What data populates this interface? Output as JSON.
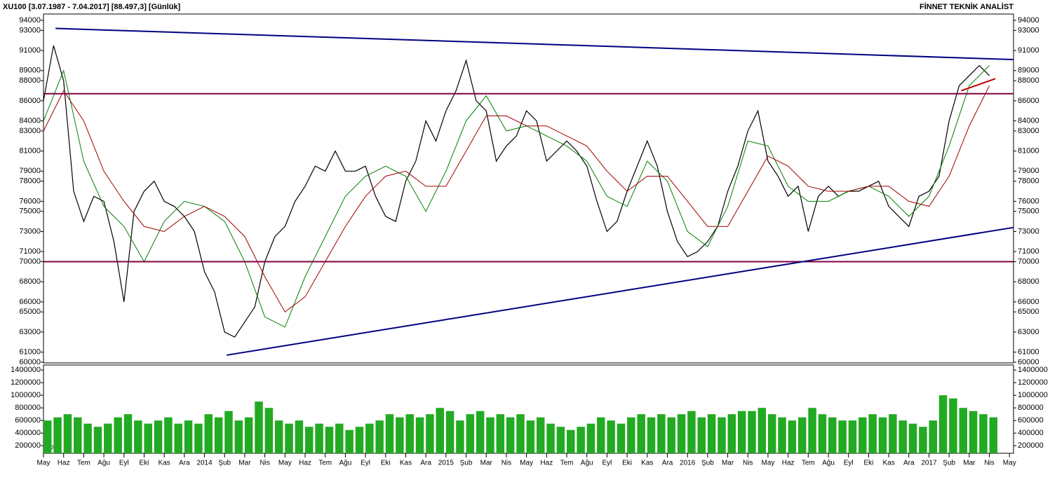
{
  "chart_data": [
    {
      "type": "line",
      "title": "XU100  [3.07.1987 - 7.04.2017]  [88.497,3]  [Günlük]",
      "subtitle": "FİNNET TEKNİK ANALİST",
      "xlim": [
        0,
        48.2
      ],
      "ylim": [
        59930,
        94630
      ],
      "yticks": [
        60000,
        61000,
        63000,
        65000,
        66000,
        68000,
        70000,
        71000,
        73000,
        75000,
        76000,
        78000,
        79000,
        81000,
        83000,
        84000,
        86000,
        88000,
        89000,
        91000,
        93000,
        94000
      ],
      "x": [
        0,
        0.5,
        1,
        1.5,
        2,
        2.5,
        3,
        3.5,
        4,
        4.5,
        5,
        5.5,
        6,
        6.5,
        7,
        7.5,
        8,
        8.5,
        9,
        9.5,
        10,
        10.5,
        11,
        11.5,
        12,
        12.5,
        13,
        13.5,
        14,
        14.5,
        15,
        15.5,
        16,
        16.5,
        17,
        17.5,
        18,
        18.5,
        19,
        19.5,
        20,
        20.5,
        21,
        21.5,
        22,
        22.5,
        23,
        23.5,
        24,
        24.5,
        25,
        25.5,
        26,
        26.5,
        27,
        27.5,
        28,
        28.5,
        29,
        29.5,
        30,
        30.5,
        31,
        31.5,
        32,
        32.5,
        33,
        33.5,
        34,
        34.5,
        35,
        35.5,
        36,
        36.5,
        37,
        37.5,
        38,
        38.5,
        39,
        39.5,
        40,
        40.5,
        41,
        41.5,
        42,
        42.5,
        43,
        43.5,
        44,
        44.5,
        45,
        45.5,
        46,
        46.5,
        47
      ],
      "series": [
        {
          "color": "#000000",
          "values": [
            86000,
            91500,
            88000,
            77000,
            74000,
            76500,
            76000,
            72000,
            66000,
            75000,
            77000,
            78000,
            76000,
            75500,
            74500,
            73000,
            69000,
            67000,
            63000,
            62500,
            64000,
            65500,
            70000,
            72500,
            73500,
            76000,
            77500,
            79500,
            79000,
            81000,
            79000,
            79000,
            79500,
            76500,
            74500,
            74000,
            78000,
            80000,
            84000,
            82000,
            85000,
            87000,
            90000,
            86000,
            85000,
            80000,
            81500,
            82500,
            85000,
            84000,
            80000,
            81000,
            82000,
            81000,
            79500,
            76000,
            73000,
            74000,
            77000,
            79500,
            82000,
            79500,
            75000,
            72000,
            70500,
            71000,
            72000,
            73500,
            77000,
            79500,
            83000,
            85000,
            80000,
            78500,
            76500,
            77500,
            73000,
            76500,
            77500,
            76500,
            77000,
            77000,
            77500,
            78000,
            75500,
            74500,
            73500,
            76500,
            77000,
            78500,
            84000,
            87500,
            88500,
            89500,
            88500
          ]
        },
        {
          "color": "#008000",
          "x": [
            0,
            1,
            2,
            3,
            4,
            5,
            6,
            7,
            8,
            9,
            10,
            11,
            12,
            13,
            14,
            15,
            16,
            17,
            18,
            19,
            20,
            21,
            22,
            23,
            24,
            25,
            26,
            27,
            28,
            29,
            30,
            31,
            32,
            33,
            34,
            35,
            36,
            37,
            38,
            39,
            40,
            41,
            42,
            43,
            44,
            45,
            46,
            47
          ],
          "values": [
            84000,
            89000,
            80000,
            75500,
            73500,
            70000,
            74000,
            76000,
            75500,
            74000,
            70000,
            64500,
            63500,
            68500,
            72500,
            76500,
            78500,
            79500,
            78500,
            75000,
            79000,
            84000,
            86500,
            83000,
            83500,
            82500,
            81500,
            80000,
            76500,
            75500,
            80000,
            78000,
            73000,
            71500,
            75500,
            82000,
            81500,
            77500,
            76000,
            76000,
            77000,
            77500,
            76500,
            74500,
            76500,
            81500,
            87500,
            89500
          ]
        },
        {
          "color": "#a00000",
          "x": [
            0,
            1,
            2,
            3,
            4,
            5,
            6,
            7,
            8,
            9,
            10,
            11,
            12,
            13,
            14,
            15,
            16,
            17,
            18,
            19,
            20,
            21,
            22,
            23,
            24,
            25,
            26,
            27,
            28,
            29,
            30,
            31,
            32,
            33,
            34,
            35,
            36,
            37,
            38,
            39,
            40,
            41,
            42,
            43,
            44,
            45,
            46,
            47
          ],
          "values": [
            83000,
            87000,
            84000,
            79000,
            76000,
            73500,
            73000,
            74500,
            75500,
            74500,
            72500,
            68500,
            65000,
            66500,
            70000,
            73500,
            76500,
            78500,
            79000,
            77500,
            77500,
            81000,
            84500,
            84500,
            83500,
            83500,
            82500,
            81500,
            79000,
            77000,
            78500,
            78500,
            76000,
            73500,
            73500,
            77000,
            80500,
            79500,
            77500,
            77000,
            77000,
            77500,
            77500,
            76000,
            75500,
            78500,
            83500,
            87500
          ]
        }
      ],
      "trendlines": [
        {
          "color": "#000080",
          "points": [
            [
              0.6,
              93200
            ],
            [
              48.2,
              90100
            ]
          ]
        },
        {
          "color": "#800040",
          "points": [
            [
              0,
              86700
            ],
            [
              48.2,
              86700
            ]
          ]
        },
        {
          "color": "#800040",
          "points": [
            [
              0,
              70000
            ],
            [
              48.2,
              70000
            ]
          ]
        },
        {
          "color": "#000080",
          "points": [
            [
              9.1,
              60700
            ],
            [
              48.2,
              73400
            ]
          ]
        },
        {
          "color": "#c00000",
          "points": [
            [
              45.6,
              87000
            ],
            [
              47.3,
              88200
            ]
          ]
        }
      ]
    },
    {
      "type": "bar",
      "unit_label": "10^3",
      "color": "#22aa22",
      "xlim": [
        0,
        48.2
      ],
      "ylim": [
        80000,
        1480000
      ],
      "yticks": [
        200000,
        400000,
        600000,
        800000,
        1000000,
        1200000,
        1400000
      ],
      "xticks": [
        {
          "value": 0,
          "label": "May"
        },
        {
          "value": 1,
          "label": "Haz"
        },
        {
          "value": 2,
          "label": "Tem"
        },
        {
          "value": 3,
          "label": "Ağu"
        },
        {
          "value": 4,
          "label": "Eyl"
        },
        {
          "value": 5,
          "label": "Eki"
        },
        {
          "value": 6,
          "label": "Kas"
        },
        {
          "value": 7,
          "label": "Ara"
        },
        {
          "value": 8,
          "label": "2014"
        },
        {
          "value": 9,
          "label": "Şub"
        },
        {
          "value": 10,
          "label": "Mar"
        },
        {
          "value": 11,
          "label": "Nis"
        },
        {
          "value": 12,
          "label": "May"
        },
        {
          "value": 13,
          "label": "Haz"
        },
        {
          "value": 14,
          "label": "Tem"
        },
        {
          "value": 15,
          "label": "Ağu"
        },
        {
          "value": 16,
          "label": "Eyl"
        },
        {
          "value": 17,
          "label": "Eki"
        },
        {
          "value": 18,
          "label": "Kas"
        },
        {
          "value": 19,
          "label": "Ara"
        },
        {
          "value": 20,
          "label": "2015"
        },
        {
          "value": 21,
          "label": "Şub"
        },
        {
          "value": 22,
          "label": "Mar"
        },
        {
          "value": 23,
          "label": "Nis"
        },
        {
          "value": 24,
          "label": "May"
        },
        {
          "value": 25,
          "label": "Haz"
        },
        {
          "value": 26,
          "label": "Tem"
        },
        {
          "value": 27,
          "label": "Ağu"
        },
        {
          "value": 28,
          "label": "Eyl"
        },
        {
          "value": 29,
          "label": "Eki"
        },
        {
          "value": 30,
          "label": "Kas"
        },
        {
          "value": 31,
          "label": "Ara"
        },
        {
          "value": 32,
          "label": "2016"
        },
        {
          "value": 33,
          "label": "Şub"
        },
        {
          "value": 34,
          "label": "Mar"
        },
        {
          "value": 35,
          "label": "Nis"
        },
        {
          "value": 36,
          "label": "May"
        },
        {
          "value": 37,
          "label": "Haz"
        },
        {
          "value": 38,
          "label": "Tem"
        },
        {
          "value": 39,
          "label": "Ağu"
        },
        {
          "value": 40,
          "label": "Eyl"
        },
        {
          "value": 41,
          "label": "Eki"
        },
        {
          "value": 42,
          "label": "Kas"
        },
        {
          "value": 43,
          "label": "Ara"
        },
        {
          "value": 44,
          "label": "2017"
        },
        {
          "value": 45,
          "label": "Şub"
        },
        {
          "value": 46,
          "label": "Mar"
        },
        {
          "value": 47,
          "label": "Nis"
        },
        {
          "value": 48,
          "label": "May"
        }
      ],
      "x": [
        0,
        0.5,
        1,
        1.5,
        2,
        2.5,
        3,
        3.5,
        4,
        4.5,
        5,
        5.5,
        6,
        6.5,
        7,
        7.5,
        8,
        8.5,
        9,
        9.5,
        10,
        10.5,
        11,
        11.5,
        12,
        12.5,
        13,
        13.5,
        14,
        14.5,
        15,
        15.5,
        16,
        16.5,
        17,
        17.5,
        18,
        18.5,
        19,
        19.5,
        20,
        20.5,
        21,
        21.5,
        22,
        22.5,
        23,
        23.5,
        24,
        24.5,
        25,
        25.5,
        26,
        26.5,
        27,
        27.5,
        28,
        28.5,
        29,
        29.5,
        30,
        30.5,
        31,
        31.5,
        32,
        32.5,
        33,
        33.5,
        34,
        34.5,
        35,
        35.5,
        36,
        36.5,
        37,
        37.5,
        38,
        38.5,
        39,
        39.5,
        40,
        40.5,
        41,
        41.5,
        42,
        42.5,
        43,
        43.5,
        44,
        44.5,
        45,
        45.5,
        46,
        46.5,
        47
      ],
      "values": [
        600000,
        650000,
        700000,
        650000,
        550000,
        500000,
        550000,
        650000,
        700000,
        600000,
        550000,
        600000,
        650000,
        550000,
        600000,
        550000,
        700000,
        650000,
        750000,
        600000,
        650000,
        900000,
        800000,
        600000,
        550000,
        600000,
        500000,
        550000,
        500000,
        550000,
        450000,
        500000,
        550000,
        600000,
        700000,
        650000,
        700000,
        650000,
        700000,
        800000,
        750000,
        600000,
        700000,
        750000,
        650000,
        700000,
        650000,
        700000,
        600000,
        650000,
        550000,
        500000,
        450000,
        500000,
        550000,
        650000,
        600000,
        550000,
        650000,
        700000,
        650000,
        700000,
        650000,
        700000,
        750000,
        650000,
        700000,
        650000,
        700000,
        750000,
        750000,
        800000,
        700000,
        650000,
        600000,
        650000,
        800000,
        700000,
        650000,
        600000,
        600000,
        650000,
        700000,
        650000,
        700000,
        600000,
        550000,
        500000,
        600000,
        1000000,
        950000,
        800000,
        750000,
        700000,
        650000
      ]
    }
  ]
}
